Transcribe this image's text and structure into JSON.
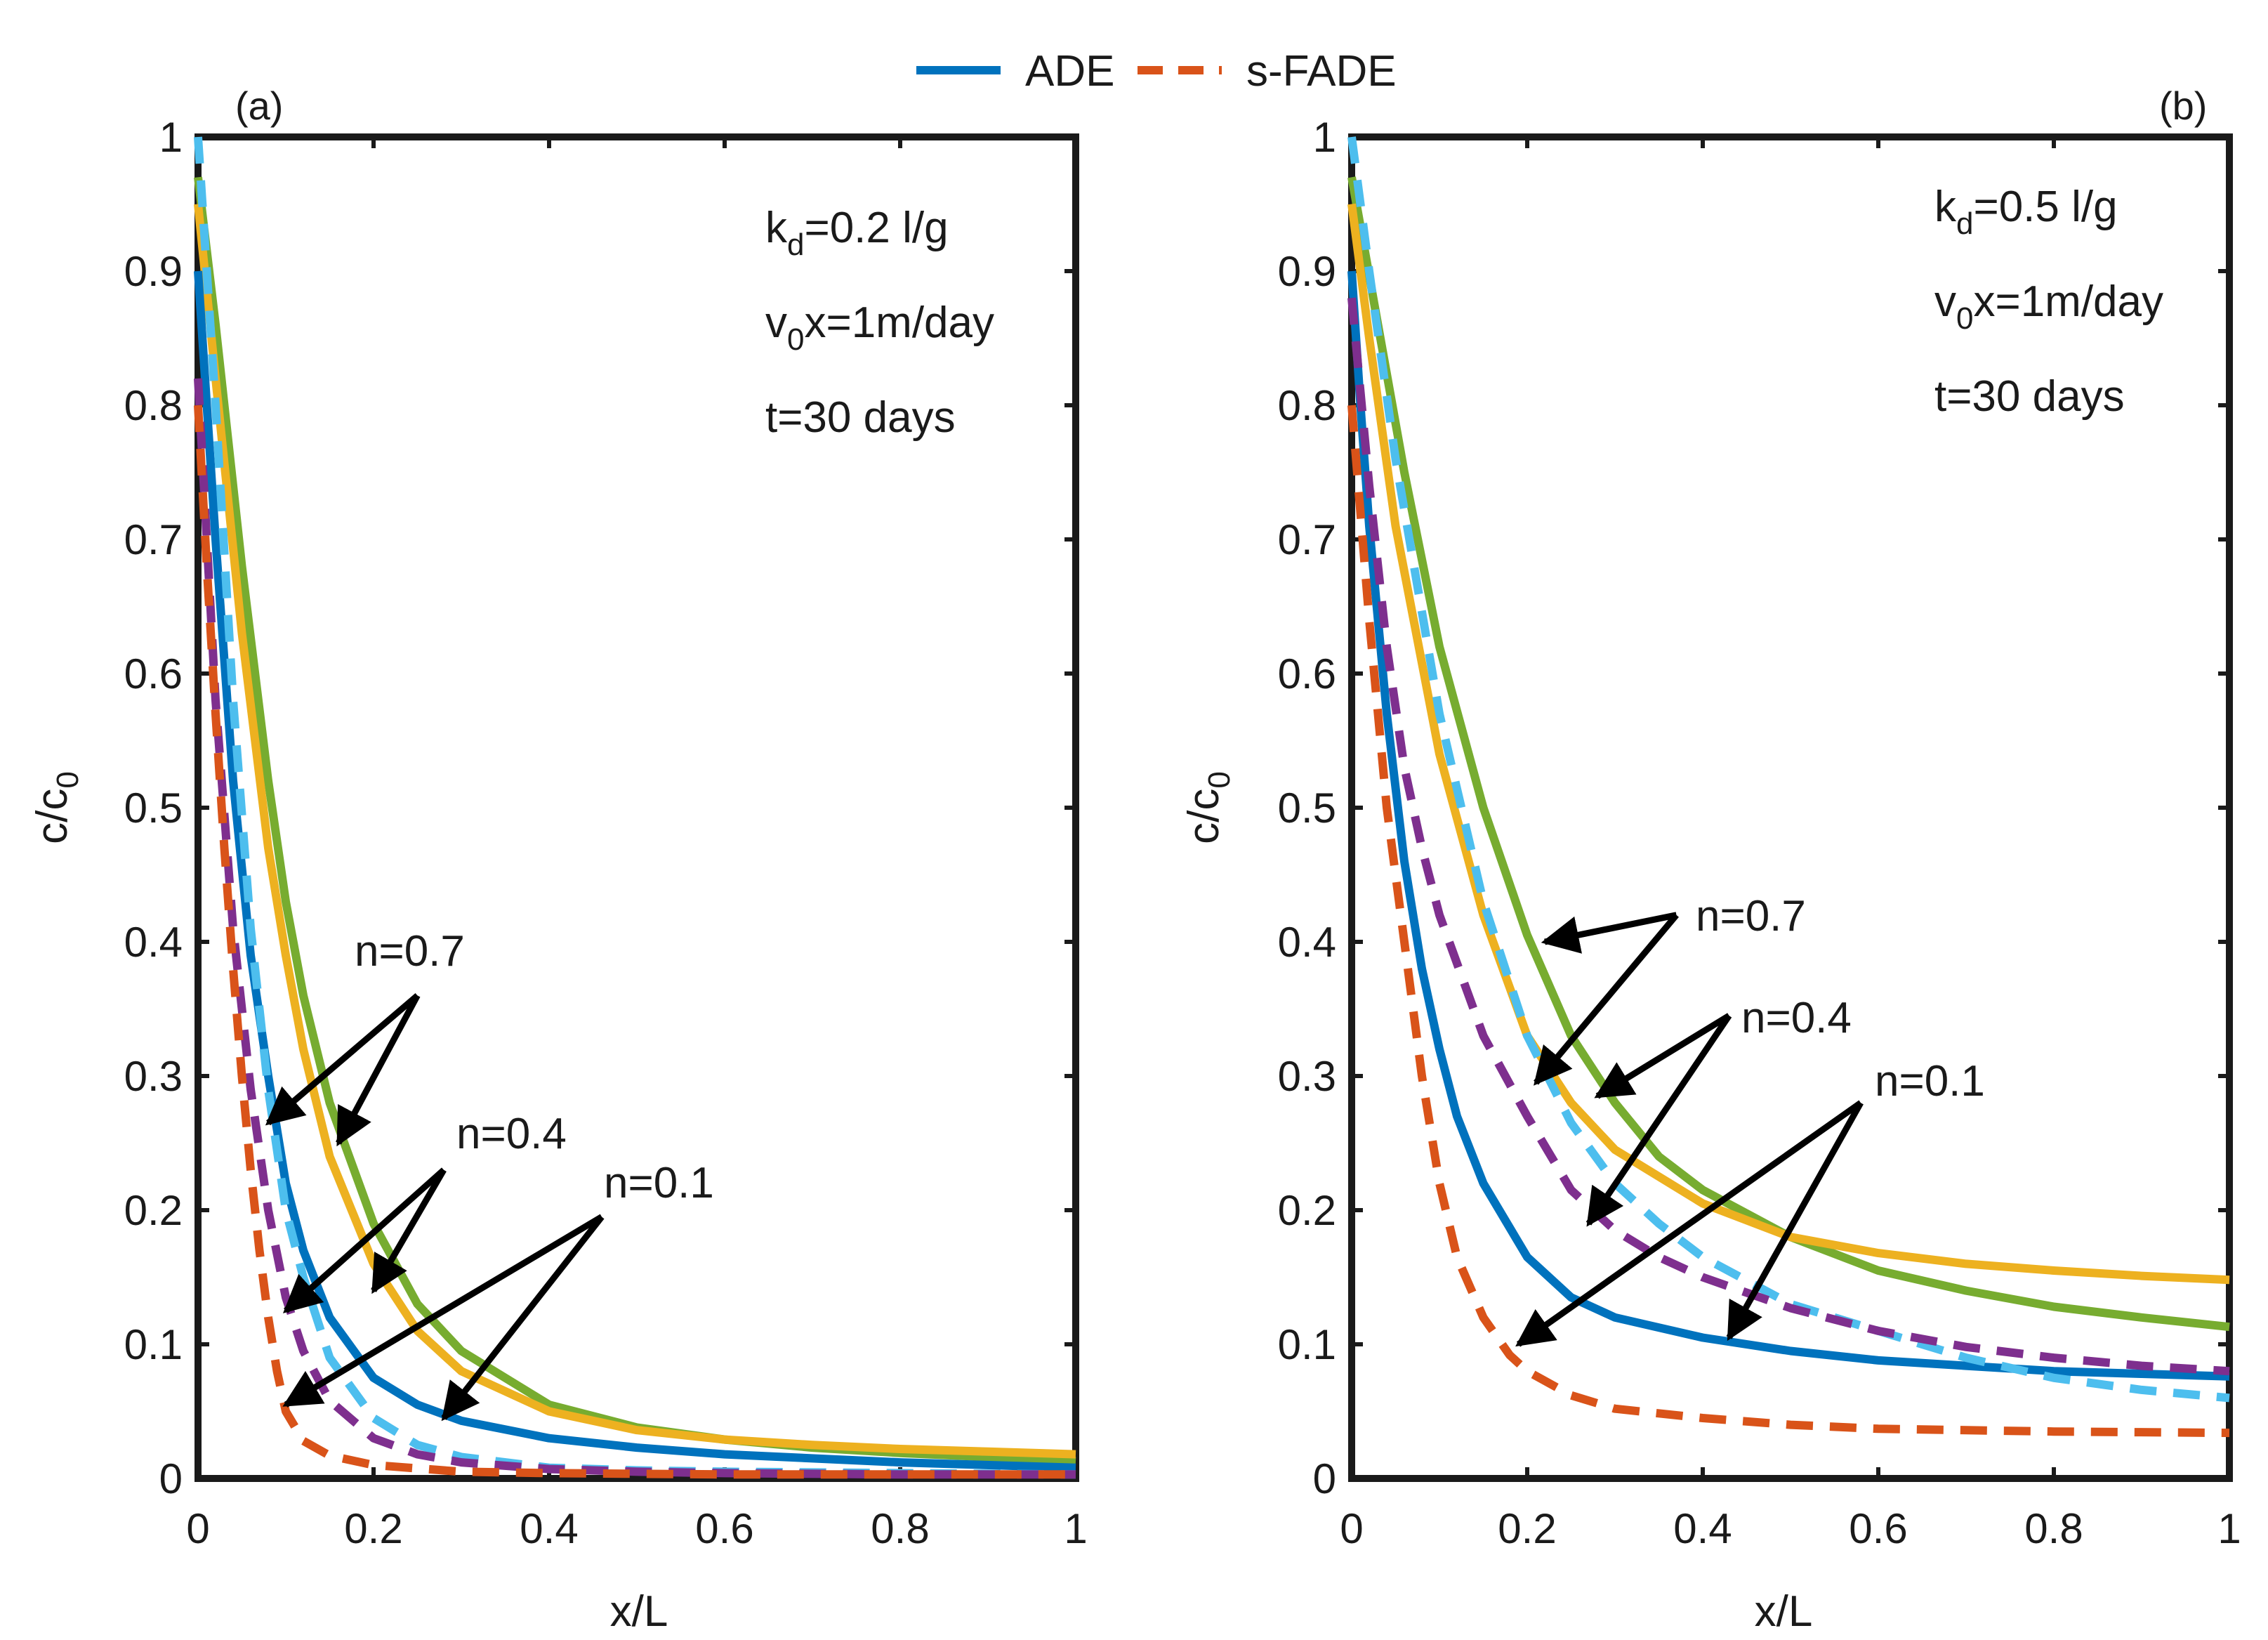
{
  "colors": {
    "ade": "#0072bd",
    "sfade": "#d95319",
    "n01_ade": "#0072bd",
    "n01_sfade": "#d95319",
    "n04_ade": "#edb120",
    "n04_sfade": "#7e2f8e",
    "n07_ade": "#77ac30",
    "n07_sfade": "#4dbeee",
    "axes": "#1a1a1a",
    "arrow": "#000000"
  },
  "legend": {
    "ade_label": "ADE",
    "sfade_label": "s-FADE"
  },
  "panels": [
    {
      "tag": "(a)",
      "params": {
        "kd_main": "k",
        "kd_sub": "d",
        "kd_rest": "=0.2 l/g",
        "v_main": "v",
        "v_sub": "0",
        "v_rest": "x=1m/day",
        "t_line": "t=30 days"
      },
      "annotations": [
        {
          "label": "n=0.7"
        },
        {
          "label": "n=0.4"
        },
        {
          "label": "n=0.1"
        }
      ]
    },
    {
      "tag": "(b)",
      "params": {
        "kd_main": "k",
        "kd_sub": "d",
        "kd_rest": "=0.5 l/g",
        "v_main": "v",
        "v_sub": "0",
        "v_rest": "x=1m/day",
        "t_line": "t=30 days"
      },
      "annotations": [
        {
          "label": "n=0.7"
        },
        {
          "label": "n=0.4"
        },
        {
          "label": "n=0.1"
        }
      ]
    }
  ],
  "chart_data": [
    {
      "type": "line",
      "title": "(a)",
      "xlabel": "x/L",
      "ylabel_main": "c/c",
      "ylabel_sub": "0",
      "xlim": [
        0,
        1
      ],
      "ylim": [
        0,
        1
      ],
      "xticks": [
        "0",
        "0.2",
        "0.4",
        "0.6",
        "0.8",
        "1"
      ],
      "yticks": [
        "0",
        "0.1",
        "0.2",
        "0.3",
        "0.4",
        "0.5",
        "0.6",
        "0.7",
        "0.8",
        "0.9",
        "1"
      ],
      "series": [
        {
          "name": "ADE n=0.7",
          "model": "ADE",
          "n": 0.7,
          "color": "#77ac30",
          "x": [
            0,
            0.02,
            0.05,
            0.08,
            0.1,
            0.12,
            0.15,
            0.2,
            0.25,
            0.3,
            0.4,
            0.5,
            0.6,
            0.7,
            0.8,
            0.9,
            1.0
          ],
          "y": [
            0.97,
            0.86,
            0.68,
            0.52,
            0.43,
            0.36,
            0.28,
            0.19,
            0.13,
            0.095,
            0.055,
            0.038,
            0.029,
            0.023,
            0.019,
            0.016,
            0.013
          ]
        },
        {
          "name": "s-FADE n=0.7",
          "model": "s-FADE",
          "n": 0.7,
          "color": "#4dbeee",
          "x": [
            0,
            0.02,
            0.04,
            0.06,
            0.08,
            0.1,
            0.12,
            0.15,
            0.2,
            0.25,
            0.3,
            0.4,
            0.5,
            0.6,
            0.8,
            1.0
          ],
          "y": [
            1.0,
            0.8,
            0.58,
            0.41,
            0.29,
            0.2,
            0.15,
            0.09,
            0.045,
            0.025,
            0.016,
            0.008,
            0.006,
            0.005,
            0.004,
            0.003
          ]
        },
        {
          "name": "ADE n=0.4",
          "model": "ADE",
          "n": 0.4,
          "color": "#edb120",
          "x": [
            0,
            0.02,
            0.05,
            0.08,
            0.1,
            0.12,
            0.15,
            0.2,
            0.25,
            0.3,
            0.4,
            0.5,
            0.6,
            0.7,
            0.8,
            0.9,
            1.0
          ],
          "y": [
            0.95,
            0.82,
            0.63,
            0.47,
            0.39,
            0.32,
            0.24,
            0.16,
            0.11,
            0.08,
            0.05,
            0.036,
            0.029,
            0.025,
            0.022,
            0.02,
            0.018
          ]
        },
        {
          "name": "s-FADE n=0.4",
          "model": "s-FADE",
          "n": 0.4,
          "color": "#7e2f8e",
          "x": [
            0,
            0.01,
            0.02,
            0.04,
            0.06,
            0.08,
            0.1,
            0.12,
            0.15,
            0.2,
            0.25,
            0.3,
            0.4,
            0.5,
            0.6,
            0.8,
            1.0
          ],
          "y": [
            0.82,
            0.7,
            0.58,
            0.41,
            0.29,
            0.2,
            0.135,
            0.095,
            0.058,
            0.03,
            0.018,
            0.012,
            0.007,
            0.005,
            0.004,
            0.003,
            0.003
          ]
        },
        {
          "name": "ADE n=0.1",
          "model": "ADE",
          "n": 0.1,
          "color": "#0072bd",
          "x": [
            0,
            0.01,
            0.02,
            0.04,
            0.06,
            0.08,
            0.1,
            0.12,
            0.15,
            0.2,
            0.25,
            0.3,
            0.4,
            0.5,
            0.6,
            0.8,
            1.0
          ],
          "y": [
            0.9,
            0.8,
            0.7,
            0.52,
            0.39,
            0.3,
            0.22,
            0.17,
            0.12,
            0.075,
            0.055,
            0.043,
            0.03,
            0.023,
            0.018,
            0.012,
            0.008
          ]
        },
        {
          "name": "s-FADE n=0.1",
          "model": "s-FADE",
          "n": 0.1,
          "color": "#d95319",
          "x": [
            0,
            0.01,
            0.02,
            0.03,
            0.04,
            0.05,
            0.06,
            0.07,
            0.08,
            0.09,
            0.1,
            0.12,
            0.15,
            0.2,
            0.3,
            0.4,
            0.6,
            0.8,
            1.0
          ],
          "y": [
            0.8,
            0.68,
            0.57,
            0.47,
            0.38,
            0.3,
            0.23,
            0.17,
            0.12,
            0.08,
            0.05,
            0.028,
            0.017,
            0.01,
            0.005,
            0.004,
            0.003,
            0.003,
            0.003
          ]
        }
      ],
      "arrows": [
        {
          "label": "n=0.7",
          "from": [
            0.25,
            0.36
          ],
          "to": [
            [
              0.08,
              0.265
            ],
            [
              0.16,
              0.25
            ]
          ]
        },
        {
          "label": "n=0.4",
          "from": [
            0.28,
            0.23
          ],
          "to": [
            [
              0.1,
              0.125
            ],
            [
              0.2,
              0.14
            ]
          ]
        },
        {
          "label": "n=0.1",
          "from": [
            0.46,
            0.195
          ],
          "to": [
            [
              0.1,
              0.055
            ],
            [
              0.28,
              0.045
            ]
          ]
        }
      ]
    },
    {
      "type": "line",
      "title": "(b)",
      "xlabel": "x/L",
      "ylabel_main": "c/c",
      "ylabel_sub": "0",
      "xlim": [
        0,
        1
      ],
      "ylim": [
        0,
        1
      ],
      "xticks": [
        "0",
        "0.2",
        "0.4",
        "0.6",
        "0.8",
        "1"
      ],
      "yticks": [
        "0",
        "0.1",
        "0.2",
        "0.3",
        "0.4",
        "0.5",
        "0.6",
        "0.7",
        "0.8",
        "0.9",
        "1"
      ],
      "series": [
        {
          "name": "ADE n=0.7",
          "model": "ADE",
          "n": 0.7,
          "color": "#77ac30",
          "x": [
            0,
            0.03,
            0.06,
            0.1,
            0.15,
            0.2,
            0.25,
            0.3,
            0.35,
            0.4,
            0.5,
            0.6,
            0.7,
            0.8,
            0.9,
            1.0
          ],
          "y": [
            0.97,
            0.86,
            0.75,
            0.62,
            0.5,
            0.405,
            0.33,
            0.28,
            0.24,
            0.215,
            0.18,
            0.155,
            0.14,
            0.128,
            0.12,
            0.113
          ]
        },
        {
          "name": "s-FADE n=0.7",
          "model": "s-FADE",
          "n": 0.7,
          "color": "#4dbeee",
          "x": [
            0,
            0.02,
            0.05,
            0.1,
            0.15,
            0.2,
            0.25,
            0.3,
            0.35,
            0.4,
            0.5,
            0.6,
            0.7,
            0.8,
            0.9,
            1.0
          ],
          "y": [
            1.0,
            0.9,
            0.76,
            0.57,
            0.43,
            0.33,
            0.265,
            0.22,
            0.19,
            0.165,
            0.13,
            0.11,
            0.09,
            0.075,
            0.066,
            0.06
          ]
        },
        {
          "name": "ADE n=0.4",
          "model": "ADE",
          "n": 0.4,
          "color": "#edb120",
          "x": [
            0,
            0.02,
            0.05,
            0.1,
            0.15,
            0.2,
            0.25,
            0.3,
            0.4,
            0.5,
            0.6,
            0.7,
            0.8,
            0.9,
            1.0
          ],
          "y": [
            0.95,
            0.85,
            0.71,
            0.54,
            0.42,
            0.33,
            0.28,
            0.245,
            0.205,
            0.18,
            0.168,
            0.16,
            0.155,
            0.151,
            0.148
          ]
        },
        {
          "name": "s-FADE n=0.4",
          "model": "s-FADE",
          "n": 0.4,
          "color": "#7e2f8e",
          "x": [
            0,
            0.02,
            0.04,
            0.06,
            0.08,
            0.1,
            0.15,
            0.2,
            0.25,
            0.3,
            0.35,
            0.4,
            0.5,
            0.6,
            0.7,
            0.8,
            0.9,
            1.0
          ],
          "y": [
            0.88,
            0.74,
            0.62,
            0.53,
            0.47,
            0.42,
            0.33,
            0.27,
            0.215,
            0.185,
            0.165,
            0.15,
            0.127,
            0.11,
            0.098,
            0.09,
            0.084,
            0.08
          ]
        },
        {
          "name": "ADE n=0.1",
          "model": "ADE",
          "n": 0.1,
          "color": "#0072bd",
          "x": [
            0,
            0.01,
            0.02,
            0.04,
            0.06,
            0.08,
            0.1,
            0.12,
            0.15,
            0.2,
            0.25,
            0.3,
            0.4,
            0.5,
            0.6,
            0.7,
            0.8,
            0.9,
            1.0
          ],
          "y": [
            0.9,
            0.8,
            0.71,
            0.57,
            0.46,
            0.38,
            0.32,
            0.27,
            0.22,
            0.165,
            0.135,
            0.12,
            0.105,
            0.095,
            0.088,
            0.084,
            0.08,
            0.078,
            0.076
          ]
        },
        {
          "name": "s-FADE n=0.1",
          "model": "s-FADE",
          "n": 0.1,
          "color": "#d95319",
          "x": [
            0,
            0.01,
            0.02,
            0.04,
            0.06,
            0.08,
            0.1,
            0.12,
            0.15,
            0.18,
            0.2,
            0.25,
            0.3,
            0.4,
            0.5,
            0.6,
            0.8,
            1.0
          ],
          "y": [
            0.8,
            0.72,
            0.64,
            0.5,
            0.4,
            0.3,
            0.22,
            0.165,
            0.12,
            0.092,
            0.08,
            0.062,
            0.052,
            0.045,
            0.04,
            0.037,
            0.035,
            0.034
          ]
        }
      ],
      "arrows": [
        {
          "label": "n=0.7",
          "from": [
            0.37,
            0.42
          ],
          "to": [
            [
              0.22,
              0.4
            ],
            [
              0.21,
              0.295
            ]
          ]
        },
        {
          "label": "n=0.4",
          "from": [
            0.43,
            0.345
          ],
          "to": [
            [
              0.28,
              0.285
            ],
            [
              0.27,
              0.19
            ]
          ]
        },
        {
          "name": "n=0.1",
          "label": "n=0.1",
          "from": [
            0.58,
            0.28
          ],
          "to": [
            [
              0.19,
              0.1
            ],
            [
              0.43,
              0.105
            ]
          ]
        }
      ]
    }
  ]
}
